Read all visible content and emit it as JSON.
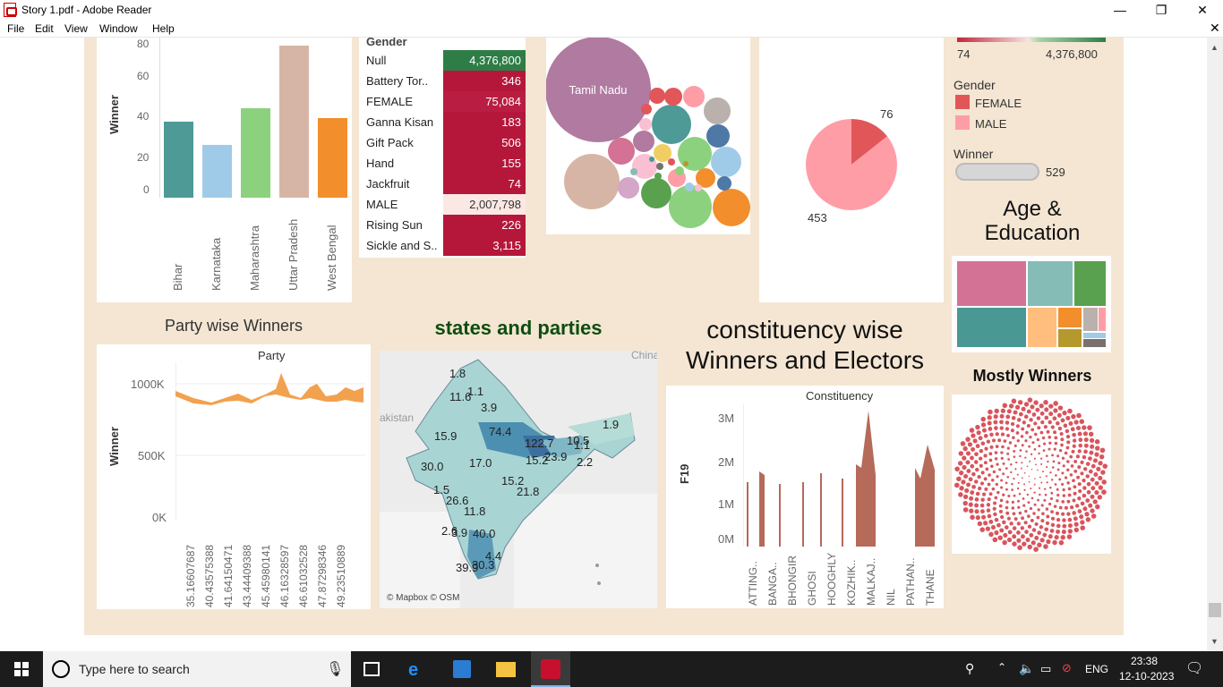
{
  "window": {
    "title": "Story 1.pdf - Adobe Reader"
  },
  "menu": [
    "File",
    "Edit",
    "View",
    "Window",
    "Help"
  ],
  "colors": {
    "dashboard_bg": "#f4e6d3",
    "teal": "#4e9a96",
    "light_blue": "#a0cbe8",
    "green": "#8cd17d",
    "tan": "#d7b5a6",
    "orange": "#f28e2b",
    "crimson": "#b5173b",
    "dark_green": "#2f7d46",
    "pink": "#ff9da7",
    "red": "#e15759",
    "brown": "#b56a5a"
  },
  "state_chart": {
    "ylabel": "Winner",
    "chart_data": {
      "type": "bar",
      "categories": [
        "Bihar",
        "Karnataka",
        "Maharashtra",
        "Uttar Pradesh",
        "West Bengal"
      ],
      "values": [
        40,
        28,
        47,
        80,
        42
      ],
      "ylabel": "Winner",
      "yticks": [
        "0",
        "20",
        "40",
        "60",
        "80"
      ],
      "ylim": [
        0,
        80
      ]
    }
  },
  "gender_table": {
    "header": "Gender",
    "rows": [
      {
        "label": "Null",
        "value": "4,376,800",
        "color": "#2f7d46"
      },
      {
        "label": "Battery Tor..",
        "value": "346",
        "color": "#b5173b"
      },
      {
        "label": "FEMALE",
        "value": "75,084",
        "color": "#b91d41"
      },
      {
        "label": "Ganna Kisan",
        "value": "183",
        "color": "#b5173b"
      },
      {
        "label": "Gift Pack",
        "value": "506",
        "color": "#b5173b"
      },
      {
        "label": "Hand",
        "value": "155",
        "color": "#b5173b"
      },
      {
        "label": "Jackfruit",
        "value": "74",
        "color": "#b5173b"
      },
      {
        "label": "MALE",
        "value": "2,007,798",
        "color": "#fbe8e4"
      },
      {
        "label": "Rising Sun",
        "value": "226",
        "color": "#b5173b"
      },
      {
        "label": "Sickle and S..",
        "value": "3,115",
        "color": "#b5173b"
      }
    ]
  },
  "bubble_chart": {
    "big_label": "Tamil Nadu"
  },
  "pie_chart": {
    "chart_data": {
      "type": "pie",
      "slices": [
        {
          "label": "76",
          "value": 76,
          "color": "#e15759"
        },
        {
          "label": "453",
          "value": 453,
          "color": "#ff9da7"
        }
      ]
    }
  },
  "legends": {
    "color_min": "74",
    "color_max": "4,376,800",
    "gender_title": "Gender",
    "gender_items": [
      {
        "label": "FEMALE",
        "color": "#e15759"
      },
      {
        "label": "MALE",
        "color": "#ff9da7"
      }
    ],
    "winner_title": "Winner",
    "winner_value": "529"
  },
  "age_education": {
    "title_line1": "Age &",
    "title_line2": "Education"
  },
  "party_chart": {
    "title": "Party wise Winners",
    "inner_title": "Party",
    "ylabel": "Winner",
    "chart_data": {
      "type": "area",
      "x": [
        "35.16607687",
        "40.43575388",
        "41.64150471",
        "43.44409388",
        "45.45980141",
        "46.16328597",
        "46.61032528",
        "47.87298346",
        "49.23510889"
      ],
      "yticks": [
        "0K",
        "500K",
        "1000K"
      ],
      "ylim": [
        0,
        1100000
      ]
    }
  },
  "map": {
    "title": "states and parties",
    "label_china": "China",
    "label_pakistan": "akistan",
    "attribution": "© Mapbox © OSM",
    "values": [
      "1.8",
      "11.6",
      "1.1",
      "3.9",
      "15.9",
      "74.4",
      "122.7",
      "10.5",
      "1.1",
      "1.9",
      "30.0",
      "17.0",
      "15.2",
      "23.9",
      "2.2",
      "1.5",
      "15.2",
      "21.8",
      "26.6",
      "11.8",
      "2.6",
      "3.9",
      "40.0",
      "4.4",
      "39.9",
      "30.3"
    ]
  },
  "constituency_chart": {
    "title_line1": "constituency wise",
    "title_line2": "Winners and Electors",
    "inner_title": "Constituency",
    "ylabel": "F19",
    "chart_data": {
      "type": "area",
      "x": [
        "ATTING..",
        "BANGA..",
        "BHONGIR",
        "GHOSI",
        "HOOGHLY",
        "KOZHIK..",
        "MALKAJ..",
        "NIL",
        "PATHAN..",
        "THANE"
      ],
      "yticks": [
        "0M",
        "1M",
        "2M",
        "3M"
      ],
      "ylim": [
        0,
        3300000
      ]
    }
  },
  "mostly_winners": {
    "title": "Mostly Winners"
  },
  "taskbar": {
    "search_placeholder": "Type here to search",
    "lang": "ENG",
    "time": "23:38",
    "date": "12-10-2023"
  }
}
